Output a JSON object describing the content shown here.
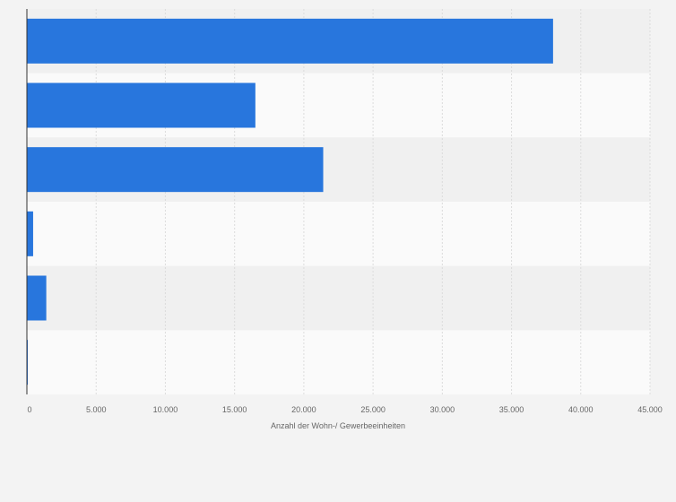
{
  "chart_data": {
    "type": "bar",
    "orientation": "horizontal",
    "categories": [
      "",
      "",
      "",
      "",
      "",
      ""
    ],
    "values": [
      38000,
      16500,
      21400,
      450,
      1400,
      60
    ],
    "xlabel": "Anzahl der Wohn-/ Gewerbeeinheiten",
    "ylabel": "",
    "xlim": [
      0,
      45000
    ],
    "xticks": [
      0,
      5000,
      10000,
      15000,
      20000,
      25000,
      30000,
      35000,
      40000,
      45000
    ],
    "xtick_labels": [
      "0",
      "5.000",
      "10.000",
      "15.000",
      "20.000",
      "25.000",
      "30.000",
      "35.000",
      "40.000",
      "45.000"
    ],
    "grid": true,
    "legend": "none",
    "colors": {
      "bar": "#2876dd",
      "background": "#f3f3f3",
      "band_odd": "#f0f0f0",
      "band_even": "#fafafa",
      "grid": "#dcdcdc",
      "axis": "#333333",
      "text": "#666666"
    }
  }
}
